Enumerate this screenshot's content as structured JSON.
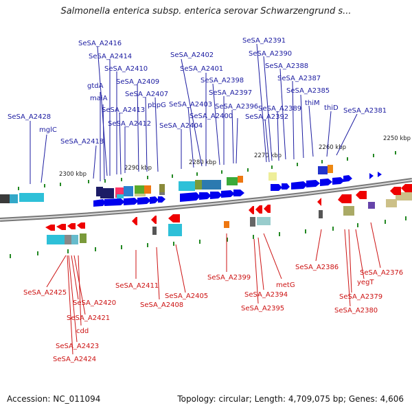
{
  "title": "Salmonella enterica subsp. enterica serovar Schwarzengrund s...",
  "footer": {
    "accession": "Accession: NC_011094",
    "summary": "Topology: circular; Length: 4,709,075 bp; Genes: 4,606"
  },
  "colors": {
    "forward_label": "#1a1aa0",
    "reverse_label": "#cc1111",
    "forward_arrow": "#0000ee",
    "reverse_arrow": "#ee0000",
    "backbone": "#777777"
  },
  "scale_labels": [
    "2300 kbp",
    "2290 kbp",
    "2280 kbp",
    "2270 kbp",
    "2260 kbp",
    "2250 kbp"
  ],
  "forward_genes": [
    "SeSA_A2428",
    "mglC",
    "SeSA_A2418",
    "gtdA",
    "maiA",
    "SeSA_A2416",
    "SeSA_A2414",
    "SeSA_A2410",
    "SeSA_A2413",
    "SeSA_A2412",
    "SeSA_A2409",
    "SeSA_A2407",
    "pbpG",
    "SeSA_A2404",
    "SeSA_A2403",
    "SeSA_A2402",
    "SeSA_A2401",
    "SeSA_A2400",
    "SeSA_A2398",
    "SeSA_A2397",
    "SeSA_A2396",
    "SeSA_A2392",
    "SeSA_A2391",
    "SeSA_A2390",
    "SeSA_A2389",
    "SeSA_A2388",
    "SeSA_A2387",
    "SeSA_A2385",
    "thiM",
    "thiD",
    "SeSA_A2381"
  ],
  "reverse_genes": [
    "SeSA_A2425",
    "SeSA_A2420",
    "SeSA_A2421",
    "cdd",
    "SeSA_A2423",
    "SeSA_A2424",
    "SeSA_A2411",
    "SeSA_A2408",
    "SeSA_A2405",
    "SeSA_A2399",
    "metG",
    "SeSA_A2394",
    "SeSA_A2395",
    "SeSA_A2386",
    "SeSA_A2376",
    "yegT",
    "SeSA_A2379",
    "SeSA_A2380"
  ]
}
